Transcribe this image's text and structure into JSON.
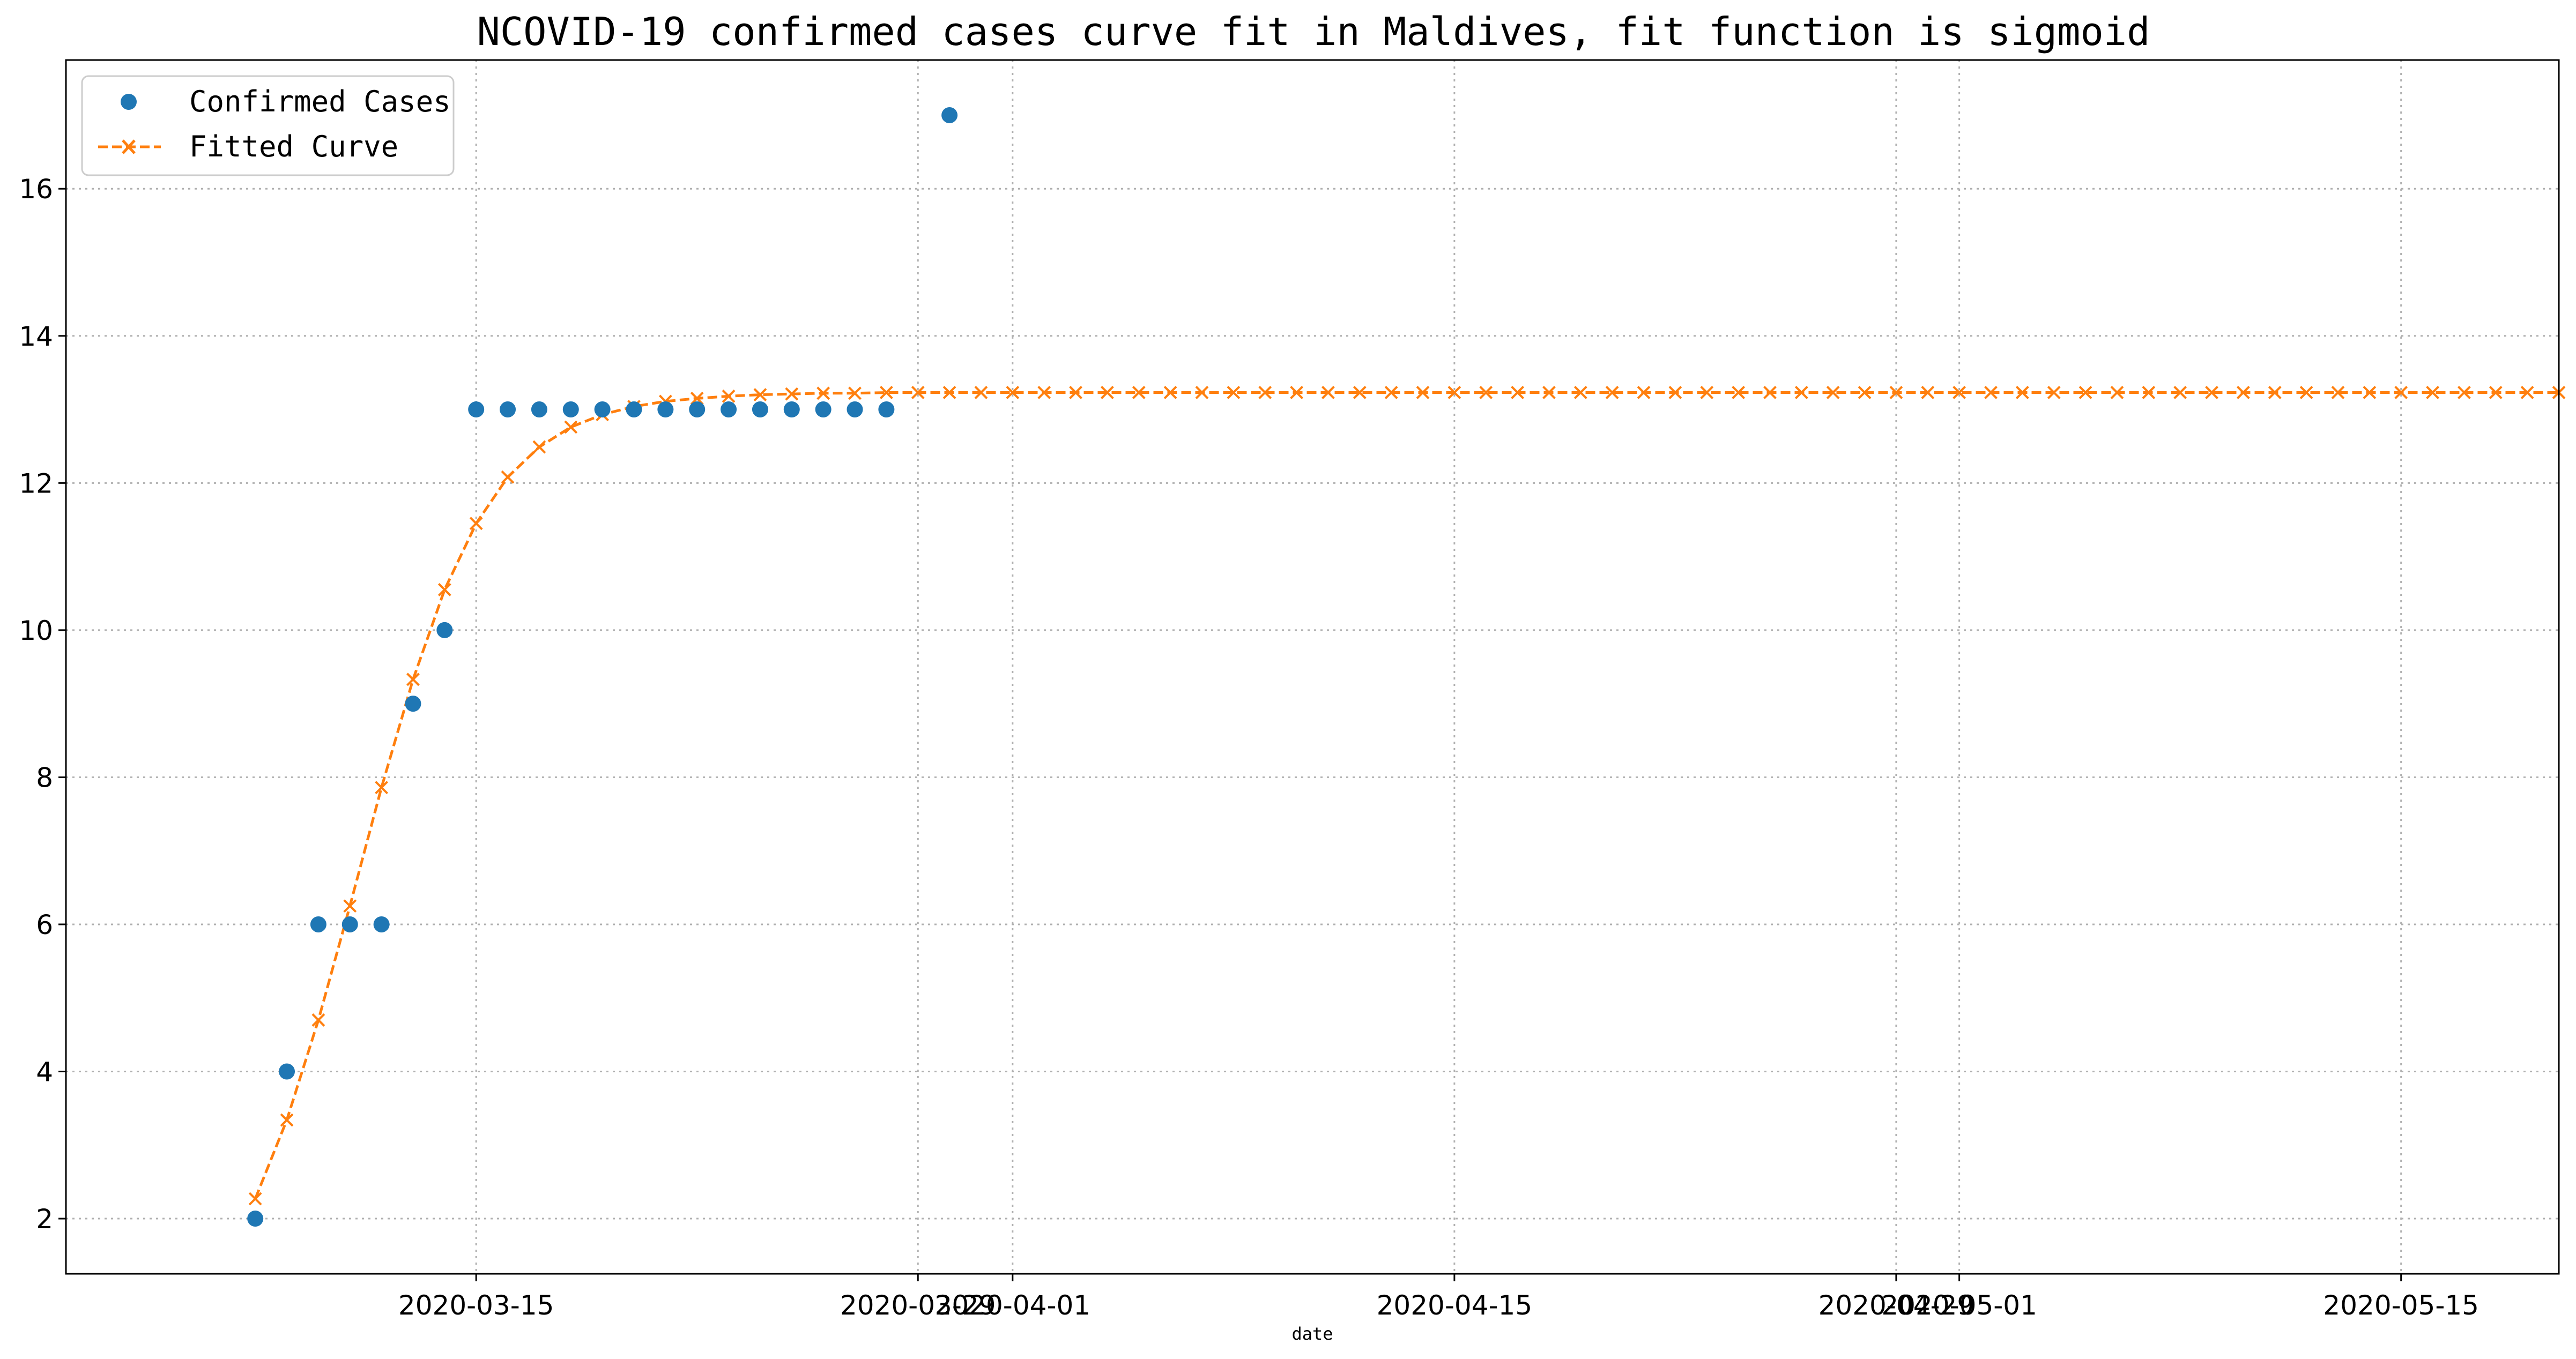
{
  "chart_data": {
    "type": "line",
    "title": "NCOVID-19 confirmed cases curve fit in Maldives, fit function is sigmoid",
    "xlabel": "date",
    "ylabel": "",
    "grid": true,
    "legend_position": "top-left",
    "x_axis_type": "date",
    "xlim": [
      "2020-03-02",
      "2020-05-20"
    ],
    "ylim": [
      1.25,
      17.75
    ],
    "x_ticks": [
      {
        "date": "2020-03-15",
        "label": "2020-03-15"
      },
      {
        "date": "2020-03-29",
        "label": "2020-03-29"
      },
      {
        "date": "2020-04-01",
        "label": "2020-04-01"
      },
      {
        "date": "2020-04-15",
        "label": "2020-04-15"
      },
      {
        "date": "2020-04-29",
        "label": "2020-04-29"
      },
      {
        "date": "2020-05-01",
        "label": "2020-05-01"
      },
      {
        "date": "2020-05-15",
        "label": "2020-05-15"
      }
    ],
    "y_ticks": [
      2,
      4,
      6,
      8,
      10,
      12,
      14,
      16
    ],
    "series": [
      {
        "name": "Confirmed Cases",
        "style": "markers",
        "marker": "circle",
        "color": "#1f77b4",
        "points": [
          {
            "date": "2020-03-08",
            "y": 2
          },
          {
            "date": "2020-03-09",
            "y": 4
          },
          {
            "date": "2020-03-10",
            "y": 6
          },
          {
            "date": "2020-03-11",
            "y": 6
          },
          {
            "date": "2020-03-12",
            "y": 6
          },
          {
            "date": "2020-03-13",
            "y": 9
          },
          {
            "date": "2020-03-14",
            "y": 10
          },
          {
            "date": "2020-03-15",
            "y": 13
          },
          {
            "date": "2020-03-16",
            "y": 13
          },
          {
            "date": "2020-03-17",
            "y": 13
          },
          {
            "date": "2020-03-18",
            "y": 13
          },
          {
            "date": "2020-03-19",
            "y": 13
          },
          {
            "date": "2020-03-20",
            "y": 13
          },
          {
            "date": "2020-03-21",
            "y": 13
          },
          {
            "date": "2020-03-22",
            "y": 13
          },
          {
            "date": "2020-03-23",
            "y": 13
          },
          {
            "date": "2020-03-24",
            "y": 13
          },
          {
            "date": "2020-03-25",
            "y": 13
          },
          {
            "date": "2020-03-26",
            "y": 13
          },
          {
            "date": "2020-03-27",
            "y": 13
          },
          {
            "date": "2020-03-28",
            "y": 13
          },
          {
            "date": "2020-03-30",
            "y": 17
          }
        ]
      },
      {
        "name": "Fitted Curve",
        "style": "dashed-line-x-markers",
        "marker": "x",
        "color": "#ff7f0e",
        "start_date": "2020-03-08",
        "values": [
          2.27,
          3.34,
          4.7,
          6.25,
          7.86,
          9.33,
          10.55,
          11.45,
          12.08,
          12.49,
          12.76,
          12.93,
          13.04,
          13.11,
          13.15,
          13.18,
          13.2,
          13.21,
          13.22,
          13.22,
          13.23,
          13.23,
          13.23,
          13.23,
          13.23,
          13.23,
          13.23,
          13.23,
          13.23,
          13.23,
          13.23,
          13.23,
          13.23,
          13.23,
          13.23,
          13.23,
          13.23,
          13.23,
          13.23,
          13.23,
          13.23,
          13.23,
          13.23,
          13.23,
          13.23,
          13.23,
          13.23,
          13.23,
          13.23,
          13.23,
          13.23,
          13.23,
          13.23,
          13.23,
          13.23,
          13.23,
          13.23,
          13.23,
          13.23,
          13.23,
          13.23,
          13.23,
          13.23,
          13.23,
          13.23,
          13.23,
          13.23,
          13.23,
          13.23,
          13.23,
          13.23,
          13.23,
          13.23,
          13.23
        ]
      }
    ]
  }
}
